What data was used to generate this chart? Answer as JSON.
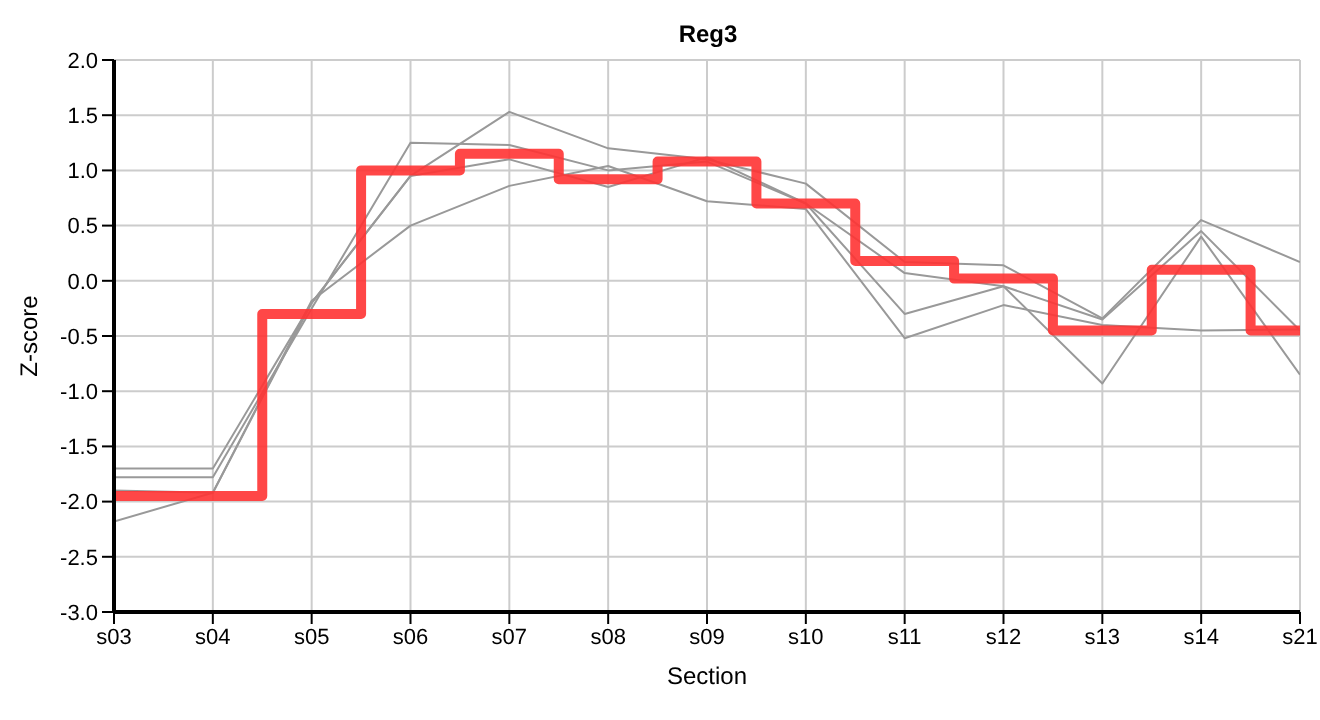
{
  "chart_data": {
    "type": "line",
    "title": "Reg3",
    "xlabel": "Section",
    "ylabel": "Z-score",
    "categories": [
      "s03",
      "s04",
      "s05",
      "s06",
      "s07",
      "s08",
      "s09",
      "s10",
      "s11",
      "s12",
      "s13",
      "s14",
      "s21"
    ],
    "series": [
      {
        "color": "#999999",
        "values": [
          -1.7,
          -1.7,
          -0.2,
          0.95,
          1.53,
          1.2,
          1.1,
          0.88,
          0.17,
          0.14,
          -0.34,
          0.55,
          0.17
        ]
      },
      {
        "color": "#999999",
        "values": [
          -1.78,
          -1.78,
          -0.25,
          1.25,
          1.23,
          1.0,
          1.08,
          0.7,
          0.07,
          -0.05,
          -0.35,
          0.45,
          -0.45
        ]
      },
      {
        "color": "#999999",
        "values": [
          -2.18,
          -1.92,
          -0.2,
          0.95,
          1.1,
          0.85,
          1.12,
          0.7,
          -0.3,
          -0.05,
          -0.93,
          0.4,
          -0.85
        ]
      },
      {
        "color": "#999999",
        "values": [
          -1.9,
          -1.92,
          -0.18,
          0.5,
          0.86,
          1.04,
          0.72,
          0.65,
          -0.52,
          -0.22,
          -0.4,
          -0.45,
          -0.44
        ]
      },
      {
        "type": "step",
        "color": "#ff3333",
        "values": [
          -1.95,
          -1.95,
          -0.3,
          1.0,
          1.15,
          0.92,
          1.08,
          0.7,
          0.18,
          0.02,
          -0.45,
          0.1,
          -0.45
        ]
      }
    ],
    "ylim": [
      -3.0,
      2.0
    ],
    "yticks": [
      {
        "value": -3,
        "label": "-3.0"
      },
      {
        "value": -2.5,
        "label": "-2.5"
      },
      {
        "value": -2,
        "label": "-2.0"
      },
      {
        "value": -1.5,
        "label": "-1.5"
      },
      {
        "value": -1,
        "label": "-1.0"
      },
      {
        "value": -0.5,
        "label": "-0.5"
      },
      {
        "value": 0,
        "label": "0.0"
      },
      {
        "value": 0.5,
        "label": "0.5"
      },
      {
        "value": 1,
        "label": "1.0"
      },
      {
        "value": 1.5,
        "label": "1.5"
      },
      {
        "value": 2,
        "label": "2.0"
      }
    ],
    "grid": true,
    "marker": "none",
    "line_style": "solid"
  }
}
